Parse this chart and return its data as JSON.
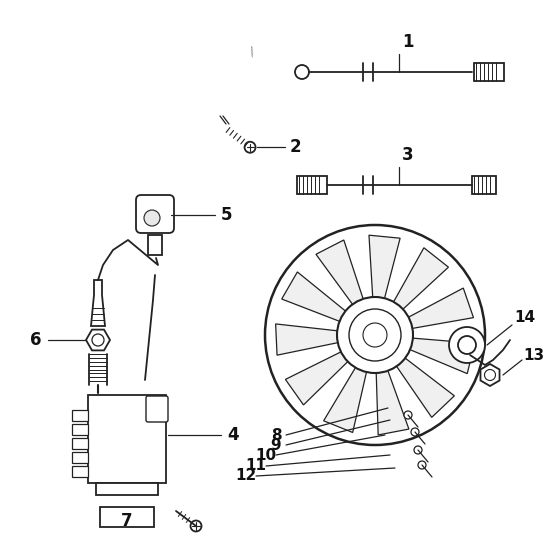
{
  "background_color": "#ffffff",
  "line_color": "#222222",
  "label_color": "#111111",
  "figsize": [
    5.6,
    5.6
  ],
  "dpi": 100,
  "xlim": [
    0,
    560
  ],
  "ylim": [
    0,
    560
  ]
}
